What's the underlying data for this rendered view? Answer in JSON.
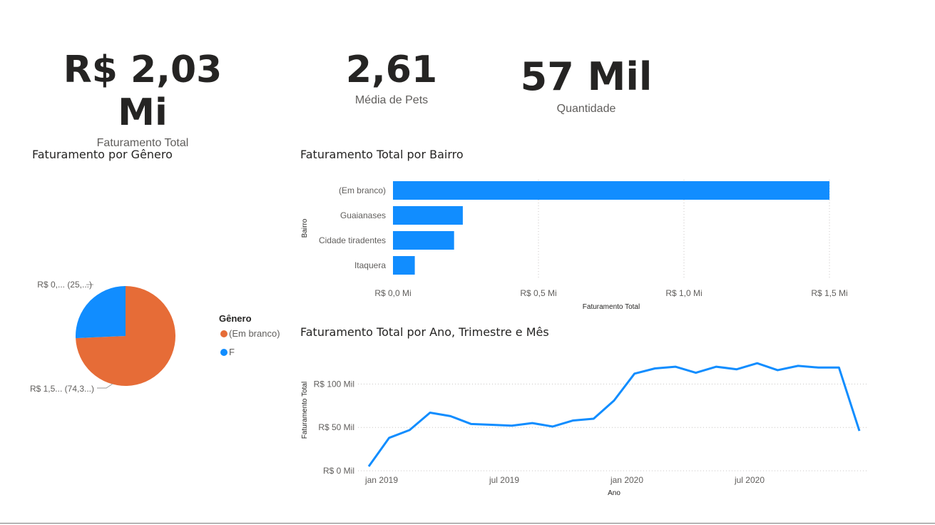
{
  "kpis": [
    {
      "value": "R$ 2,03 Mi",
      "label": "Faturamento Total"
    },
    {
      "value": "2,61",
      "label": "Média de Pets"
    },
    {
      "value": "57 Mil",
      "label": "Quantidade"
    }
  ],
  "colors": {
    "blue": "#118dff",
    "orange": "#e66c37",
    "text": "#252423",
    "muted": "#605e5c",
    "grid": "#c8c6c4"
  },
  "chart_data": [
    {
      "type": "pie",
      "title": "Faturamento por Gênero",
      "legend_title": "Gênero",
      "legend_position": "right",
      "slices": [
        {
          "name": "(Em branco)",
          "value": 74.3,
          "label": "R$ 1,5... (74,3...)",
          "color": "#e66c37"
        },
        {
          "name": "F",
          "value": 25.7,
          "label": "R$ 0,... (25,...)",
          "color": "#118dff"
        }
      ]
    },
    {
      "type": "bar",
      "orientation": "horizontal",
      "title": "Faturamento Total por Bairro",
      "xlabel": "Faturamento Total",
      "ylabel": "Bairro",
      "categories": [
        "(Em branco)",
        "Guaianases",
        "Cidade tiradentes",
        "Itaquera"
      ],
      "values": [
        1.5,
        0.24,
        0.21,
        0.075
      ],
      "xlim": [
        0,
        1.5
      ],
      "xticks": [
        0,
        0.5,
        1.0,
        1.5
      ],
      "xtick_labels": [
        "R$ 0,0 Mi",
        "R$ 0,5 Mi",
        "R$ 1,0 Mi",
        "R$ 1,5 Mi"
      ],
      "grid": true,
      "color": "#118dff"
    },
    {
      "type": "line",
      "title": "Faturamento Total por Ano, Trimestre e Mês",
      "xlabel": "Ano",
      "ylabel": "Faturamento Total",
      "x": [
        "2019-01",
        "2019-02",
        "2019-03",
        "2019-04",
        "2019-05",
        "2019-06",
        "2019-07",
        "2019-08",
        "2019-09",
        "2019-10",
        "2019-11",
        "2019-12",
        "2020-01",
        "2020-02",
        "2020-03",
        "2020-04",
        "2020-05",
        "2020-06",
        "2020-07",
        "2020-08",
        "2020-09",
        "2020-10",
        "2020-11",
        "2020-12"
      ],
      "values": [
        5,
        38,
        47,
        67,
        63,
        54,
        53,
        52,
        55,
        51,
        58,
        60,
        81,
        112,
        118,
        120,
        113,
        120,
        117,
        124,
        116,
        121,
        119,
        119
      ],
      "last_value": 46,
      "ylim": [
        0,
        120
      ],
      "yticks": [
        0,
        50,
        100
      ],
      "ytick_labels": [
        "R$ 0 Mil",
        "R$ 50 Mil",
        "R$ 100 Mil"
      ],
      "xtick_labels": [
        "jan 2019",
        "jul 2019",
        "jan 2020",
        "jul 2020"
      ],
      "grid": true,
      "color": "#118dff"
    }
  ]
}
